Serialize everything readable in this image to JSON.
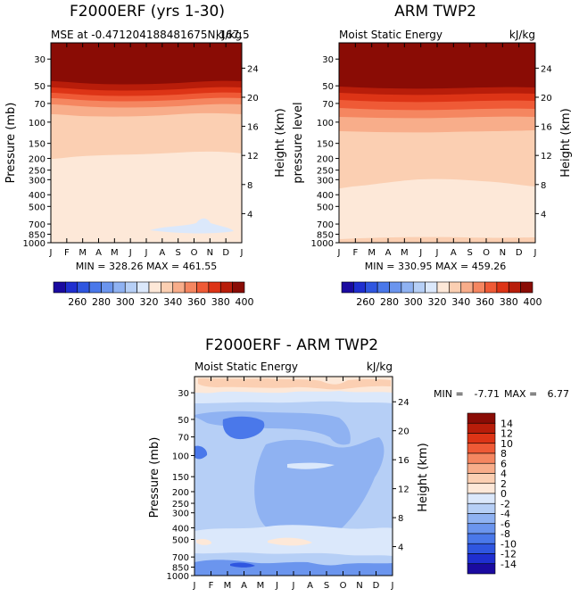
{
  "chart_data": [
    {
      "type": "heatmap",
      "title": "F2000ERF (yrs 1-30)",
      "subtitle_left": "MSE at -0.471204188481675N,167.5",
      "subtitle_right": "kJ/kg",
      "ylabel_left": "Pressure (mb)",
      "ylabel_right": "Height (km)",
      "months": [
        "J",
        "F",
        "M",
        "A",
        "M",
        "J",
        "J",
        "A",
        "S",
        "O",
        "N",
        "D",
        "J"
      ],
      "pressure_ticks": [
        "30",
        "50",
        "70",
        "100",
        "150",
        "200",
        "250",
        "300",
        "400",
        "500",
        "700",
        "850",
        "1000"
      ],
      "height_ticks": [
        "24",
        "20",
        "16",
        "12",
        "8",
        "4"
      ],
      "min_label": "MIN =",
      "min_value": "328.26",
      "max_label": "MAX =",
      "max_value": "461.55",
      "range_line": "MIN = 328.26 MAX = 461.55",
      "contour_bands": [
        {
          "upper_level": "400+",
          "note": "top layer above ~45 mb"
        },
        {
          "upper_level": "380-400"
        },
        {
          "upper_level": "360-380"
        },
        {
          "upper_level": "340-360"
        },
        {
          "upper_level": "330-340"
        },
        {
          "upper_level": "320-330",
          "note": "small patch near 700-800 mb, Jul-Oct"
        }
      ]
    },
    {
      "type": "heatmap",
      "title": "ARM TWP2",
      "subtitle_left": "Moist Static Energy",
      "subtitle_right": "kJ/kg",
      "ylabel_left": "pressure level",
      "ylabel_right": "Height (km)",
      "months": [
        "J",
        "F",
        "M",
        "A",
        "M",
        "J",
        "J",
        "A",
        "S",
        "O",
        "N",
        "D",
        "J"
      ],
      "pressure_ticks": [
        "30",
        "50",
        "70",
        "100",
        "150",
        "200",
        "250",
        "300",
        "400",
        "500",
        "700",
        "850",
        "1000"
      ],
      "height_ticks": [
        "24",
        "20",
        "16",
        "12",
        "8",
        "4"
      ],
      "min_label": "MIN =",
      "min_value": "330.95",
      "max_label": "MAX =",
      "max_value": "459.26",
      "range_line": "MIN = 330.95 MAX = 459.26"
    },
    {
      "type": "heatmap",
      "title": "F2000ERF - ARM TWP2",
      "subtitle_left": "Moist Static Energy",
      "subtitle_right": "kJ/kg",
      "ylabel_left": "Pressure (mb)",
      "ylabel_right": "Height (km)",
      "months": [
        "J",
        "F",
        "M",
        "A",
        "M",
        "J",
        "J",
        "A",
        "S",
        "O",
        "N",
        "D",
        "J"
      ],
      "pressure_ticks": [
        "30",
        "50",
        "70",
        "100",
        "150",
        "200",
        "250",
        "300",
        "400",
        "500",
        "700",
        "850",
        "1000"
      ],
      "height_ticks": [
        "24",
        "20",
        "16",
        "12",
        "8",
        "4"
      ],
      "min_label": "MIN =",
      "min_value": "-7.71",
      "max_label": "MAX =",
      "max_value": "6.77"
    }
  ],
  "colorbar_top": {
    "labels": [
      "260",
      "280",
      "300",
      "320",
      "340",
      "360",
      "380",
      "400"
    ],
    "colors": [
      "#1a0aa0",
      "#1f2fd0",
      "#2f56e0",
      "#4a78ea",
      "#6b95ee",
      "#8fb2f2",
      "#b6cff6",
      "#dbe8fb",
      "#fde8d8",
      "#fbcfb2",
      "#f8ad8a",
      "#f58660",
      "#ef5a36",
      "#dd3416",
      "#b81d0a",
      "#8a0c05"
    ]
  },
  "colorbar_diff": {
    "labels": [
      "14",
      "12",
      "10",
      "8",
      "6",
      "4",
      "2",
      "0",
      "-2",
      "-4",
      "-6",
      "-8",
      "-10",
      "-12",
      "-14"
    ],
    "colors": [
      "#8a0c05",
      "#b81d0a",
      "#dd3416",
      "#ef5a36",
      "#f58660",
      "#f8ad8a",
      "#fbcfb2",
      "#fde8d8",
      "#dbe8fb",
      "#b6cff6",
      "#8fb2f2",
      "#6b95ee",
      "#4a78ea",
      "#2f56e0",
      "#1f2fd0",
      "#1a0aa0"
    ]
  }
}
